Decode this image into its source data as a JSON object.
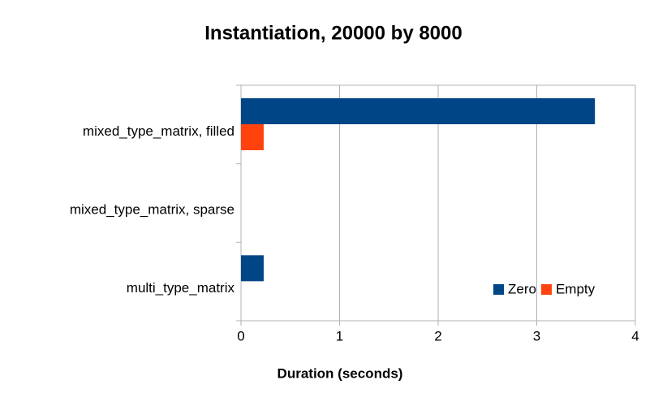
{
  "chart_data": {
    "type": "hbar",
    "title": "Instantiation, 20000 by 8000",
    "x_label": "Duration (seconds)",
    "categories": [
      "mixed_type_matrix, filled",
      "mixed_type_matrix, sparse",
      "multi_type_matrix"
    ],
    "series": [
      {
        "name": "Zero",
        "color": "#004586",
        "values": [
          3.59,
          0,
          0.23
        ]
      },
      {
        "name": "Empty",
        "color": "#ff420e",
        "values": [
          0.23,
          0,
          0
        ]
      }
    ],
    "xlim": [
      0,
      4
    ],
    "xticks": [
      0,
      1,
      2,
      3,
      4
    ],
    "grid": true,
    "legend": "lower right"
  }
}
